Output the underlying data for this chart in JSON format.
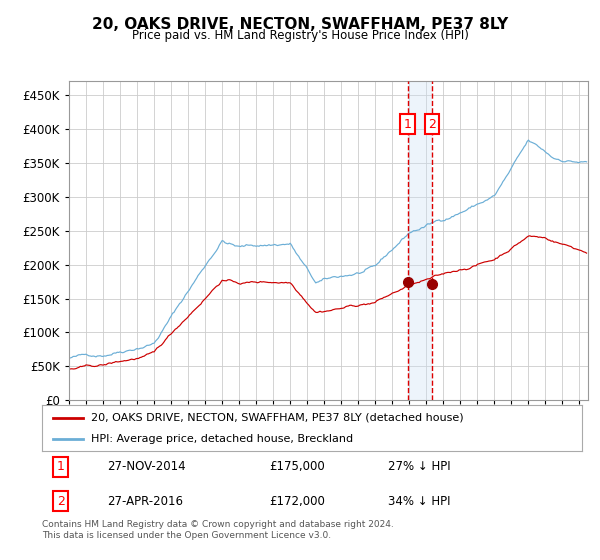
{
  "title": "20, OAKS DRIVE, NECTON, SWAFFHAM, PE37 8LY",
  "subtitle": "Price paid vs. HM Land Registry's House Price Index (HPI)",
  "legend_line1": "20, OAKS DRIVE, NECTON, SWAFFHAM, PE37 8LY (detached house)",
  "legend_line2": "HPI: Average price, detached house, Breckland",
  "sale1_date": "27-NOV-2014",
  "sale1_price": 175000,
  "sale1_pct": "27% ↓ HPI",
  "sale2_date": "27-APR-2016",
  "sale2_price": 172000,
  "sale2_pct": "34% ↓ HPI",
  "footer": "Contains HM Land Registry data © Crown copyright and database right 2024.\nThis data is licensed under the Open Government Licence v3.0.",
  "hpi_color": "#6baed6",
  "price_color": "#cc0000",
  "sale_marker_color": "#990000",
  "vline_color": "#dd0000",
  "shade_color": "#cce0f5",
  "grid_color": "#cccccc",
  "ylim": [
    0,
    470000
  ],
  "yticks": [
    0,
    50000,
    100000,
    150000,
    200000,
    250000,
    300000,
    350000,
    400000,
    450000
  ],
  "start_year": 1995.0,
  "end_year": 2025.5,
  "sale1_x": 2014.9,
  "sale2_x": 2016.33,
  "bg_color": "#f5f5f5"
}
